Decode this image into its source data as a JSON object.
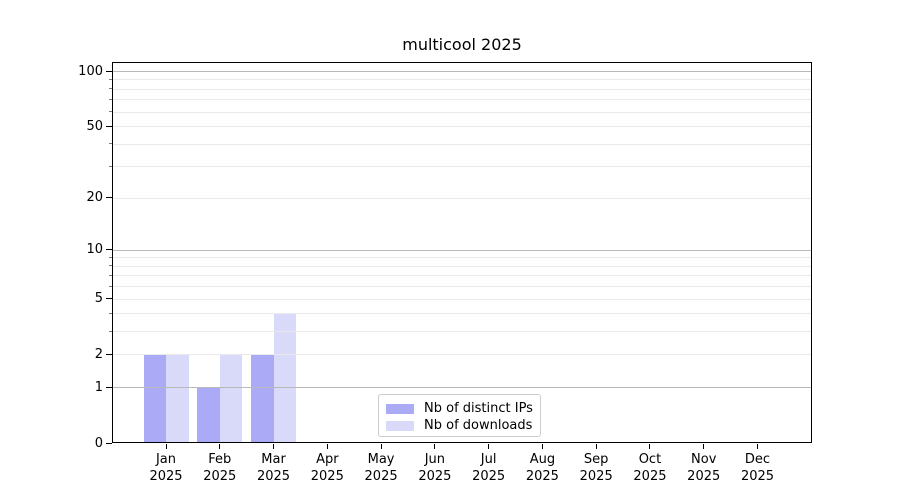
{
  "chart_data": {
    "type": "bar",
    "title": "multicool 2025",
    "categories": [
      "Jan",
      "Feb",
      "Mar",
      "Apr",
      "May",
      "Jun",
      "Jul",
      "Aug",
      "Sep",
      "Oct",
      "Nov",
      "Dec"
    ],
    "category_year": "2025",
    "series": [
      {
        "name": "Nb of distinct IPs",
        "color": "#aaaaf7",
        "values": [
          2,
          1,
          2,
          0,
          0,
          0,
          0,
          0,
          0,
          0,
          0,
          0
        ]
      },
      {
        "name": "Nb of downloads",
        "color": "#d9d9fa",
        "values": [
          2,
          2,
          4,
          0,
          0,
          0,
          0,
          0,
          0,
          0,
          0,
          0
        ]
      }
    ],
    "xlabel": "",
    "ylabel": "",
    "yscale": "log1p",
    "ylim": [
      0,
      112
    ],
    "yticks": [
      0,
      1,
      2,
      5,
      10,
      20,
      50,
      100
    ],
    "ytick_labels": [
      "0",
      "1",
      "2",
      "5",
      "10",
      "20",
      "50",
      "100"
    ],
    "major_gridlines": [
      1,
      10,
      100
    ],
    "minor_gridlines": [
      2,
      3,
      4,
      5,
      6,
      7,
      8,
      9,
      20,
      30,
      40,
      50,
      60,
      70,
      80,
      90
    ],
    "grid": "horizontal, minor and major, drawn over bars",
    "legend_position": "inside lower-center",
    "colors": {
      "background": "#ffffff",
      "axis": "#000000",
      "text": "#000000",
      "major_grid": "#b9b9b9",
      "minor_grid": "#e9e9e9",
      "minor_tick": "#7a7a7a",
      "legend_border": "#cccccc"
    }
  }
}
